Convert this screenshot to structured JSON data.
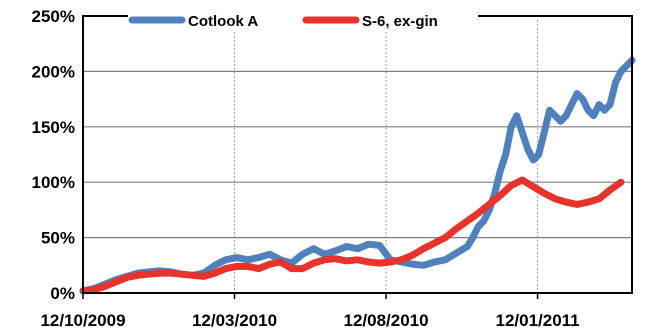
{
  "chart_data": {
    "type": "line",
    "title": "",
    "xlabel": "",
    "ylabel": "",
    "ylim": [
      0,
      250
    ],
    "y_ticks": [
      0,
      50,
      100,
      150,
      200,
      250
    ],
    "y_tick_labels": [
      "0%",
      "50%",
      "100%",
      "150%",
      "200%",
      "250%"
    ],
    "x_tick_labels": [
      "12/10/2009",
      "12/03/2010",
      "12/08/2010",
      "12/01/2011"
    ],
    "x_tick_fracs": [
      0,
      0.276,
      0.552,
      0.828
    ],
    "grid": {
      "horizontal": true,
      "vertical": "dotted"
    },
    "legend": "top-center",
    "series": [
      {
        "name": "Cotlook A",
        "color": "#4f81bd",
        "x": [
          0.0,
          0.02,
          0.04,
          0.06,
          0.08,
          0.1,
          0.12,
          0.14,
          0.16,
          0.18,
          0.2,
          0.22,
          0.24,
          0.26,
          0.28,
          0.3,
          0.32,
          0.34,
          0.36,
          0.38,
          0.4,
          0.42,
          0.44,
          0.46,
          0.48,
          0.5,
          0.52,
          0.54,
          0.56,
          0.58,
          0.6,
          0.62,
          0.64,
          0.66,
          0.68,
          0.7,
          0.71,
          0.72,
          0.73,
          0.74,
          0.75,
          0.76,
          0.77,
          0.78,
          0.79,
          0.8,
          0.81,
          0.82,
          0.83,
          0.84,
          0.85,
          0.86,
          0.87,
          0.88,
          0.89,
          0.9,
          0.91,
          0.92,
          0.93,
          0.94,
          0.95,
          0.96,
          0.97,
          0.98,
          0.99,
          1.0
        ],
        "values": [
          2,
          4,
          8,
          12,
          15,
          18,
          19,
          20,
          19,
          17,
          16,
          18,
          25,
          30,
          32,
          30,
          32,
          35,
          30,
          27,
          35,
          40,
          35,
          38,
          42,
          40,
          44,
          43,
          30,
          28,
          26,
          25,
          28,
          30,
          36,
          42,
          50,
          60,
          65,
          75,
          90,
          110,
          125,
          150,
          160,
          145,
          130,
          120,
          125,
          145,
          165,
          160,
          155,
          160,
          170,
          180,
          175,
          165,
          160,
          170,
          165,
          170,
          190,
          200,
          205,
          210
        ]
      },
      {
        "name": "S-6, ex-gin",
        "color": "#e8322c",
        "x": [
          0.0,
          0.02,
          0.04,
          0.06,
          0.08,
          0.1,
          0.12,
          0.14,
          0.16,
          0.18,
          0.2,
          0.22,
          0.24,
          0.26,
          0.28,
          0.3,
          0.32,
          0.34,
          0.36,
          0.38,
          0.4,
          0.42,
          0.44,
          0.46,
          0.48,
          0.5,
          0.52,
          0.54,
          0.56,
          0.58,
          0.6,
          0.62,
          0.64,
          0.66,
          0.68,
          0.7,
          0.72,
          0.74,
          0.76,
          0.78,
          0.8,
          0.82,
          0.84,
          0.86,
          0.88,
          0.9,
          0.92,
          0.94,
          0.96,
          0.98
        ],
        "values": [
          2,
          3,
          6,
          10,
          14,
          16,
          17,
          18,
          18,
          17,
          16,
          15,
          18,
          22,
          24,
          24,
          22,
          26,
          28,
          22,
          22,
          27,
          30,
          31,
          29,
          30,
          28,
          27,
          28,
          30,
          34,
          40,
          45,
          50,
          58,
          65,
          72,
          80,
          88,
          97,
          102,
          96,
          90,
          85,
          82,
          80,
          82,
          85,
          93,
          100
        ]
      }
    ]
  }
}
